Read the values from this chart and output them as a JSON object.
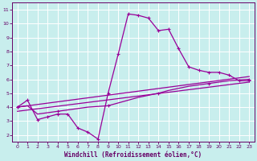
{
  "background_color": "#c8eeed",
  "grid_color": "#ffffff",
  "line_color": "#990099",
  "spine_color": "#660066",
  "tick_color": "#660066",
  "label_color": "#660066",
  "xlabel": "Windchill (Refroidissement éolien,°C)",
  "xlim": [
    -0.5,
    23.5
  ],
  "ylim": [
    1.5,
    11.5
  ],
  "yticks": [
    2,
    3,
    4,
    5,
    6,
    7,
    8,
    9,
    10,
    11
  ],
  "xticks": [
    0,
    1,
    2,
    3,
    4,
    5,
    6,
    7,
    8,
    9,
    10,
    11,
    12,
    13,
    14,
    15,
    16,
    17,
    18,
    19,
    20,
    21,
    22,
    23
  ],
  "line1_x": [
    0,
    1,
    2,
    3,
    4,
    5,
    6,
    7,
    8,
    9,
    10,
    11,
    12,
    13,
    14,
    15,
    16,
    17,
    18,
    19,
    20,
    21,
    22,
    23
  ],
  "line1_y": [
    4.0,
    4.5,
    3.1,
    3.3,
    3.5,
    3.5,
    2.5,
    2.2,
    1.7,
    5.0,
    7.8,
    10.7,
    10.6,
    10.4,
    9.5,
    9.6,
    8.2,
    6.9,
    6.65,
    6.5,
    6.5,
    6.3,
    5.9,
    5.9
  ],
  "line2_x": [
    0,
    1,
    2,
    3,
    4,
    5,
    6,
    7,
    8,
    9,
    10,
    11,
    12,
    13,
    14,
    15,
    16,
    17,
    18,
    19,
    20,
    21,
    22,
    23
  ],
  "line2_y": [
    4.0,
    4.1,
    3.5,
    3.6,
    3.7,
    3.8,
    3.9,
    4.0,
    4.05,
    4.1,
    4.3,
    4.5,
    4.7,
    4.85,
    5.0,
    5.2,
    5.35,
    5.5,
    5.6,
    5.7,
    5.8,
    5.9,
    5.95,
    6.0
  ],
  "line3_x": [
    0,
    23
  ],
  "line3_y": [
    4.0,
    6.2
  ],
  "line4_x": [
    0,
    23
  ],
  "line4_y": [
    3.7,
    5.8
  ],
  "marker_x2": [
    0,
    4,
    9,
    14,
    19,
    23
  ],
  "marker_y2": [
    4.0,
    3.7,
    4.1,
    5.0,
    5.7,
    6.0
  ]
}
